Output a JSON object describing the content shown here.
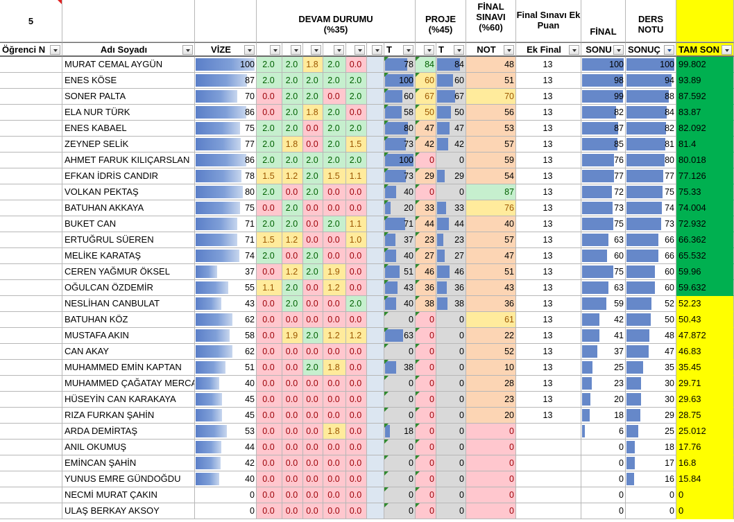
{
  "colors": {
    "green_fill": "#c6efce",
    "green_text": "#006100",
    "yellow_fill": "#ffeb9c",
    "yellow_text": "#9c5700",
    "red_fill": "#ffc7ce",
    "red_text": "#9c0006",
    "gray_fill": "#d9d9d9",
    "light_blue_fill": "#dce6f1",
    "orange_fill": "#fcd5b4",
    "pass_fill": "#00b050",
    "fail_fill": "#ffff00",
    "bar_blue": "#6688c9"
  },
  "header": {
    "cell_a": "5",
    "devam": "DEVAM DURUMU (%35)",
    "proje": "PROJE (%45)",
    "final_sinavi": "FİNAL SINAVI (%60)",
    "final_ek": "Final Sınavı Ek Puan",
    "final": "FİNAL",
    "ders_notu": "DERS NOTU"
  },
  "filter_row": {
    "ogrenci": "Öğrenci N",
    "adi": "Adı Soyadı",
    "vize": "VİZE",
    "d1": "",
    "d2": "",
    "d3": "",
    "d4": "",
    "d5": "",
    "d6": "",
    "toplam": "T",
    "pnot": "",
    "ptoplam": "T",
    "not": "NOT",
    "ek_final": "Ek Final",
    "sonuc": "SONU",
    "sonuc2": "SONUÇ",
    "tam_son": "TAM SON"
  },
  "students": [
    {
      "name": "MURAT CEMAL AYGÜN",
      "vize": "100",
      "d": [
        "2.0",
        "2.0",
        "1.8",
        "2.0",
        "0.0"
      ],
      "t": "78",
      "p": "84",
      "pt": "84",
      "not": "48",
      "ek": "13",
      "final": "100",
      "ders": "100",
      "tam": "99.802"
    },
    {
      "name": "ENES KÖSE",
      "vize": "87",
      "d": [
        "2.0",
        "2.0",
        "2.0",
        "2.0",
        "2.0"
      ],
      "t": "100",
      "p": "60",
      "pt": "60",
      "not": "51",
      "ek": "13",
      "final": "98",
      "ders": "94",
      "tam": "93.89"
    },
    {
      "name": "SONER PALTA",
      "vize": "70",
      "d": [
        "0.0",
        "2.0",
        "2.0",
        "0.0",
        "2.0"
      ],
      "t": "60",
      "p": "67",
      "pt": "67",
      "not": "70",
      "ek": "13",
      "final": "99",
      "ders": "88",
      "tam": "87.592"
    },
    {
      "name": "ELA NUR TÜRK",
      "vize": "86",
      "d": [
        "0.0",
        "2.0",
        "1.8",
        "2.0",
        "0.0"
      ],
      "t": "58",
      "p": "50",
      "pt": "50",
      "not": "56",
      "ek": "13",
      "final": "82",
      "ders": "84",
      "tam": "83.87"
    },
    {
      "name": "ENES KABAEL",
      "vize": "75",
      "d": [
        "2.0",
        "2.0",
        "0.0",
        "2.0",
        "2.0"
      ],
      "t": "80",
      "p": "47",
      "pt": "47",
      "not": "53",
      "ek": "13",
      "final": "87",
      "ders": "82",
      "tam": "82.092"
    },
    {
      "name": "ZEYNEP SELİK",
      "vize": "77",
      "d": [
        "2.0",
        "1.8",
        "0.0",
        "2.0",
        "1.5"
      ],
      "t": "73",
      "p": "42",
      "pt": "42",
      "not": "57",
      "ek": "13",
      "final": "85",
      "ders": "81",
      "tam": "81.4"
    },
    {
      "name": "AHMET FARUK KILIÇARSLAN",
      "vize": "86",
      "d": [
        "2.0",
        "2.0",
        "2.0",
        "2.0",
        "2.0"
      ],
      "t": "100",
      "p": "0",
      "pt": "0",
      "not": "59",
      "ek": "13",
      "final": "76",
      "ders": "80",
      "tam": "80.018"
    },
    {
      "name": "EFKAN İDRİS CANDIR",
      "vize": "78",
      "d": [
        "1.5",
        "1.2",
        "2.0",
        "1.5",
        "1.1"
      ],
      "t": "73",
      "p": "29",
      "pt": "29",
      "not": "54",
      "ek": "13",
      "final": "77",
      "ders": "77",
      "tam": "77.126"
    },
    {
      "name": "VOLKAN PEKTAŞ",
      "vize": "80",
      "d": [
        "2.0",
        "0.0",
        "2.0",
        "0.0",
        "0.0"
      ],
      "t": "40",
      "p": "0",
      "pt": "0",
      "not": "87",
      "ek": "13",
      "final": "72",
      "ders": "75",
      "tam": "75.33"
    },
    {
      "name": "BATUHAN AKKAYA",
      "vize": "75",
      "d": [
        "0.0",
        "2.0",
        "0.0",
        "0.0",
        "0.0"
      ],
      "t": "20",
      "p": "33",
      "pt": "33",
      "not": "76",
      "ek": "13",
      "final": "73",
      "ders": "74",
      "tam": "74.004"
    },
    {
      "name": "BUKET CAN",
      "vize": "71",
      "d": [
        "2.0",
        "2.0",
        "0.0",
        "2.0",
        "1.1"
      ],
      "t": "71",
      "p": "44",
      "pt": "44",
      "not": "40",
      "ek": "13",
      "final": "75",
      "ders": "73",
      "tam": "72.932"
    },
    {
      "name": "ERTUĞRUL SÜEREN",
      "vize": "71",
      "d": [
        "1.5",
        "1.2",
        "0.0",
        "0.0",
        "1.0"
      ],
      "t": "37",
      "p": "23",
      "pt": "23",
      "not": "57",
      "ek": "13",
      "final": "63",
      "ders": "66",
      "tam": "66.362"
    },
    {
      "name": "MELİKE KARATAŞ",
      "vize": "74",
      "d": [
        "2.0",
        "0.0",
        "2.0",
        "0.0",
        "0.0"
      ],
      "t": "40",
      "p": "27",
      "pt": "27",
      "not": "47",
      "ek": "13",
      "final": "60",
      "ders": "66",
      "tam": "65.532"
    },
    {
      "name": "CEREN YAĞMUR ÖKSEL",
      "vize": "37",
      "d": [
        "0.0",
        "1.2",
        "2.0",
        "1.9",
        "0.0"
      ],
      "t": "51",
      "p": "46",
      "pt": "46",
      "not": "51",
      "ek": "13",
      "final": "75",
      "ders": "60",
      "tam": "59.96"
    },
    {
      "name": "OĞULCAN ÖZDEMİR",
      "vize": "55",
      "d": [
        "1.1",
        "2.0",
        "0.0",
        "1.2",
        "0.0"
      ],
      "t": "43",
      "p": "36",
      "pt": "36",
      "not": "43",
      "ek": "13",
      "final": "63",
      "ders": "60",
      "tam": "59.632"
    },
    {
      "name": "NESLİHAN CANBULAT",
      "vize": "43",
      "d": [
        "0.0",
        "2.0",
        "0.0",
        "0.0",
        "2.0"
      ],
      "t": "40",
      "p": "38",
      "pt": "38",
      "not": "36",
      "ek": "13",
      "final": "59",
      "ders": "52",
      "tam": "52.23"
    },
    {
      "name": "BATUHAN KÖZ",
      "vize": "62",
      "d": [
        "0.0",
        "0.0",
        "0.0",
        "0.0",
        "0.0"
      ],
      "t": "0",
      "p": "0",
      "pt": "0",
      "not": "61",
      "ek": "13",
      "final": "42",
      "ders": "50",
      "tam": "50.43"
    },
    {
      "name": "MUSTAFA AKIN",
      "vize": "58",
      "d": [
        "0.0",
        "1.9",
        "2.0",
        "1.2",
        "1.2"
      ],
      "t": "63",
      "p": "0",
      "pt": "0",
      "not": "22",
      "ek": "13",
      "final": "41",
      "ders": "48",
      "tam": "47.872"
    },
    {
      "name": "CAN AKAY",
      "vize": "62",
      "d": [
        "0.0",
        "0.0",
        "0.0",
        "0.0",
        "0.0"
      ],
      "t": "0",
      "p": "0",
      "pt": "0",
      "not": "52",
      "ek": "13",
      "final": "37",
      "ders": "47",
      "tam": "46.83"
    },
    {
      "name": "MUHAMMED EMİN KAPTAN",
      "vize": "51",
      "d": [
        "0.0",
        "0.0",
        "2.0",
        "1.8",
        "0.0"
      ],
      "t": "38",
      "p": "0",
      "pt": "0",
      "not": "10",
      "ek": "13",
      "final": "25",
      "ders": "35",
      "tam": "35.45"
    },
    {
      "name": "MUHAMMED ÇAĞATAY MERCAN",
      "vize": "40",
      "d": [
        "0.0",
        "0.0",
        "0.0",
        "0.0",
        "0.0"
      ],
      "t": "0",
      "p": "0",
      "pt": "0",
      "not": "28",
      "ek": "13",
      "final": "23",
      "ders": "30",
      "tam": "29.71"
    },
    {
      "name": "HÜSEYİN CAN KARAKAYA",
      "vize": "45",
      "d": [
        "0.0",
        "0.0",
        "0.0",
        "0.0",
        "0.0"
      ],
      "t": "0",
      "p": "0",
      "pt": "0",
      "not": "23",
      "ek": "13",
      "final": "20",
      "ders": "30",
      "tam": "29.63"
    },
    {
      "name": "RIZA FURKAN ŞAHİN",
      "vize": "45",
      "d": [
        "0.0",
        "0.0",
        "0.0",
        "0.0",
        "0.0"
      ],
      "t": "0",
      "p": "0",
      "pt": "0",
      "not": "20",
      "ek": "13",
      "final": "18",
      "ders": "29",
      "tam": "28.75"
    },
    {
      "name": "ARDA DEMİRTAŞ",
      "vize": "53",
      "d": [
        "0.0",
        "0.0",
        "0.0",
        "1.8",
        "0.0"
      ],
      "t": "18",
      "p": "0",
      "pt": "0",
      "not": "0",
      "ek": "",
      "final": "6",
      "ders": "25",
      "tam": "25.012"
    },
    {
      "name": "ANIL OKUMUŞ",
      "vize": "44",
      "d": [
        "0.0",
        "0.0",
        "0.0",
        "0.0",
        "0.0"
      ],
      "t": "0",
      "p": "0",
      "pt": "0",
      "not": "0",
      "ek": "",
      "final": "0",
      "ders": "18",
      "tam": "17.76"
    },
    {
      "name": "EMİNCAN ŞAHİN",
      "vize": "42",
      "d": [
        "0.0",
        "0.0",
        "0.0",
        "0.0",
        "0.0"
      ],
      "t": "0",
      "p": "0",
      "pt": "0",
      "not": "0",
      "ek": "",
      "final": "0",
      "ders": "17",
      "tam": "16.8"
    },
    {
      "name": "YUNUS EMRE GÜNDOĞDU",
      "vize": "40",
      "d": [
        "0.0",
        "0.0",
        "0.0",
        "0.0",
        "0.0"
      ],
      "t": "0",
      "p": "0",
      "pt": "0",
      "not": "0",
      "ek": "",
      "final": "0",
      "ders": "16",
      "tam": "15.84"
    },
    {
      "name": "NECMİ MURAT ÇAKIN",
      "vize": "0",
      "d": [
        "0.0",
        "0.0",
        "0.0",
        "0.0",
        "0.0"
      ],
      "t": "0",
      "p": "0",
      "pt": "0",
      "not": "0",
      "ek": "",
      "final": "0",
      "ders": "0",
      "tam": "0"
    },
    {
      "name": "ULAŞ BERKAY AKSOY",
      "vize": "0",
      "d": [
        "0.0",
        "0.0",
        "0.0",
        "0.0",
        "0.0"
      ],
      "t": "0",
      "p": "0",
      "pt": "0",
      "not": "0",
      "ek": "",
      "final": "0",
      "ders": "0",
      "tam": "0"
    }
  ]
}
